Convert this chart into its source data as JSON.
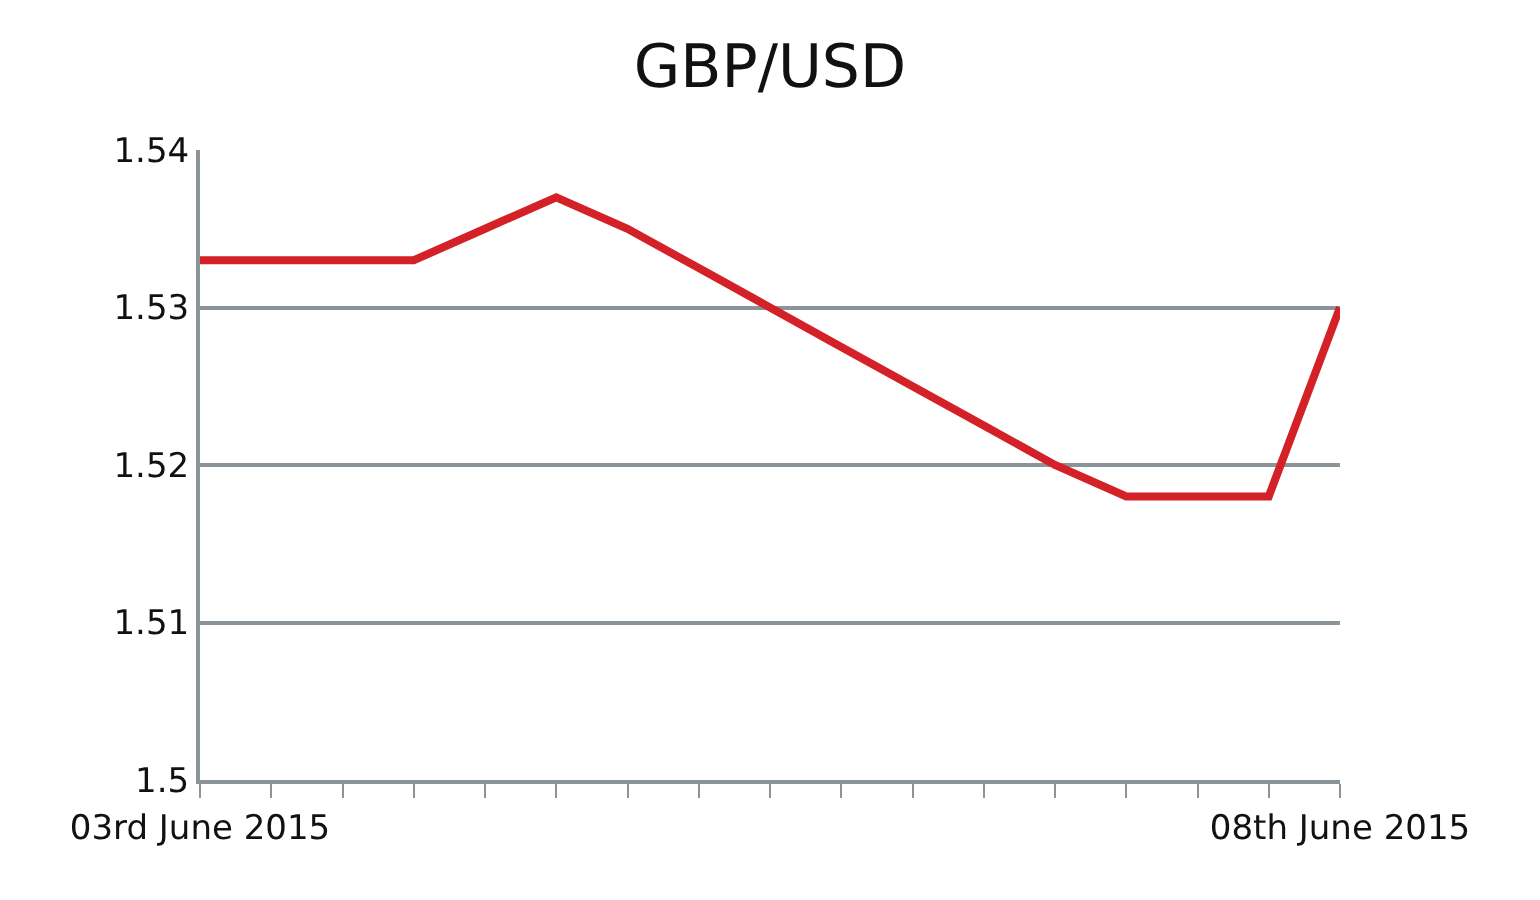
{
  "chart_data": {
    "type": "line",
    "title": "GBP/USD",
    "categories": [
      "03rd June 2015",
      null,
      null,
      null,
      null,
      null,
      null,
      null,
      null,
      null,
      null,
      null,
      null,
      null,
      null,
      null,
      "08th June 2015"
    ],
    "series": [
      {
        "color": "#d42027",
        "values": [
          1.533,
          1.533,
          1.533,
          1.533,
          1.535,
          1.537,
          1.535,
          1.5325,
          1.53,
          1.5275,
          1.525,
          1.5225,
          1.52,
          1.518,
          1.518,
          1.518,
          1.53
        ]
      }
    ],
    "ylim": [
      1.5,
      1.54
    ],
    "yticks": [
      {
        "value": 1.5,
        "label": "1.5"
      },
      1.51,
      1.52,
      1.53,
      1.54
    ],
    "grid": "y",
    "legend": false,
    "marker": "none",
    "line_style": "solid"
  }
}
